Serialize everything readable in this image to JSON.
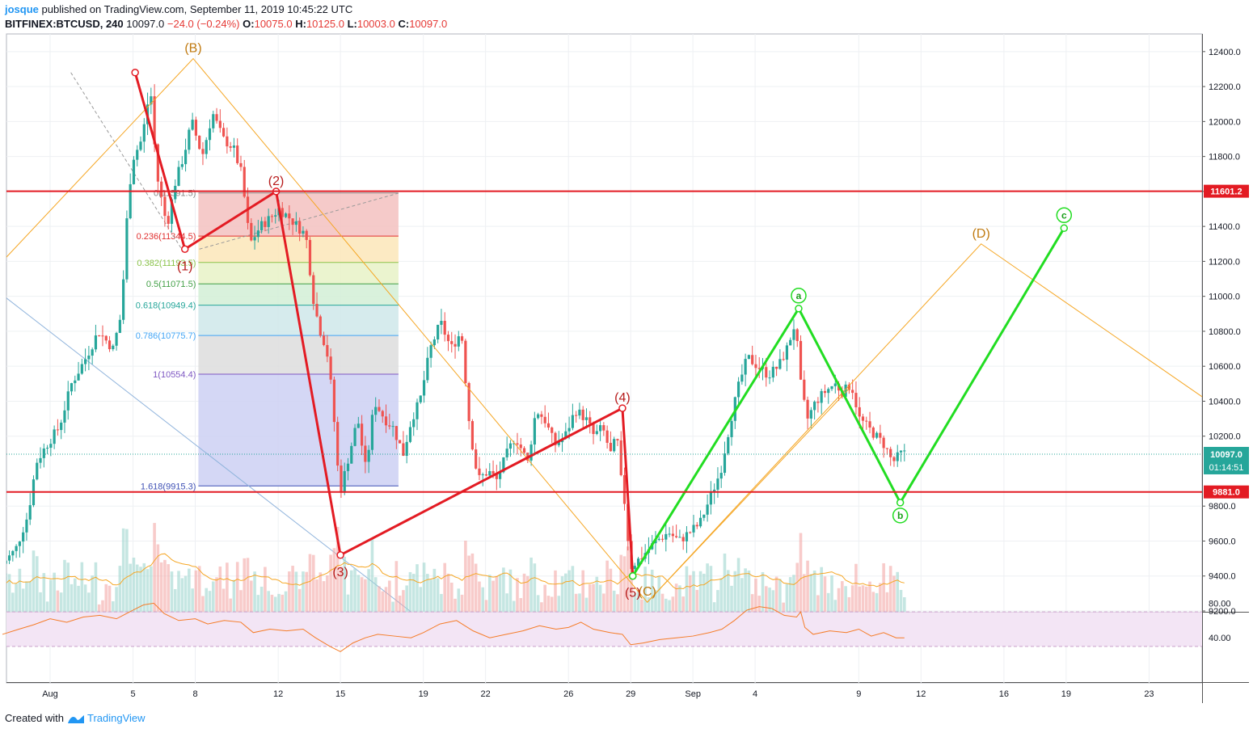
{
  "header": {
    "user": "josque",
    "published": "published on TradingView.com, September 11, 2019 10:45:22 UTC",
    "symbol": "BITFINEX:BTCUSD, 240",
    "last": "10097.0",
    "change": "−24.0 (−0.24%)",
    "ohlc": [
      {
        "k": "O:",
        "v": "10075.0"
      },
      {
        "k": "H:",
        "v": "10125.0"
      },
      {
        "k": "L:",
        "v": "10003.0"
      },
      {
        "k": "C:",
        "v": "10097.0"
      }
    ]
  },
  "footer": {
    "created": "Created with",
    "brand": "TradingView"
  },
  "colors": {
    "up": "#26a69a",
    "down": "#ef5350",
    "wave": "#e31b23",
    "abc": "#22dd22",
    "orange": "#f5a623",
    "rsi": "#f57c28"
  },
  "chart_data": {
    "type": "candlestick",
    "title": "",
    "ylim": [
      9200,
      12500
    ],
    "y_ticks": [
      "12400.0",
      "12200.0",
      "12000.0",
      "11800.0",
      "11600.0",
      "11400.0",
      "11200.0",
      "11000.0",
      "10800.0",
      "10600.0",
      "10400.0",
      "10200.0",
      "9800.0",
      "9600.0",
      "9400.0",
      "9200.0"
    ],
    "x_ticks": [
      {
        "label": "Aug",
        "day": 0
      },
      {
        "label": "5",
        "day": 4
      },
      {
        "label": "8",
        "day": 7
      },
      {
        "label": "12",
        "day": 11
      },
      {
        "label": "15",
        "day": 14
      },
      {
        "label": "19",
        "day": 18
      },
      {
        "label": "22",
        "day": 21
      },
      {
        "label": "26",
        "day": 25
      },
      {
        "label": "29",
        "day": 28
      },
      {
        "label": "Sep",
        "day": 31
      },
      {
        "label": "4",
        "day": 34
      },
      {
        "label": "9",
        "day": 39
      },
      {
        "label": "12",
        "day": 42
      },
      {
        "label": "16",
        "day": 46
      },
      {
        "label": "19",
        "day": 49
      },
      {
        "label": "23",
        "day": 53
      }
    ],
    "price_path": [
      [
        -2.3,
        9450
      ],
      [
        -1.5,
        9550
      ],
      [
        -0.9,
        9750
      ],
      [
        -0.5,
        10050
      ],
      [
        0,
        10150
      ],
      [
        0.6,
        10250
      ],
      [
        1.2,
        10500
      ],
      [
        1.9,
        10650
      ],
      [
        2.5,
        10800
      ],
      [
        3.2,
        10700
      ],
      [
        3.6,
        10900
      ],
      [
        3.95,
        11600
      ],
      [
        4.2,
        11800
      ],
      [
        4.6,
        11900
      ],
      [
        5.0,
        12200
      ],
      [
        5.3,
        11700
      ],
      [
        5.8,
        11400
      ],
      [
        6.2,
        11650
      ],
      [
        6.6,
        11800
      ],
      [
        7.0,
        12000
      ],
      [
        7.5,
        11800
      ],
      [
        8.0,
        12050
      ],
      [
        8.5,
        11900
      ],
      [
        9.0,
        11850
      ],
      [
        9.4,
        11700
      ],
      [
        9.8,
        11300
      ],
      [
        10.3,
        11400
      ],
      [
        10.8,
        11450
      ],
      [
        11.2,
        11500
      ],
      [
        11.7,
        11450
      ],
      [
        12.1,
        11400
      ],
      [
        12.5,
        11350
      ],
      [
        12.9,
        10950
      ],
      [
        13.2,
        10800
      ],
      [
        13.5,
        10700
      ],
      [
        13.8,
        10400
      ],
      [
        14.0,
        10050
      ],
      [
        14.2,
        9900
      ],
      [
        14.6,
        10100
      ],
      [
        15.0,
        10300
      ],
      [
        15.4,
        10000
      ],
      [
        15.8,
        10400
      ],
      [
        16.3,
        10300
      ],
      [
        16.7,
        10250
      ],
      [
        17.2,
        10100
      ],
      [
        17.6,
        10300
      ],
      [
        18.0,
        10400
      ],
      [
        18.5,
        10700
      ],
      [
        19.0,
        10850
      ],
      [
        19.5,
        10700
      ],
      [
        20.0,
        10800
      ],
      [
        20.4,
        10250
      ],
      [
        20.8,
        9950
      ],
      [
        21.3,
        10000
      ],
      [
        21.7,
        9950
      ],
      [
        22.2,
        10100
      ],
      [
        22.6,
        10200
      ],
      [
        23.2,
        10050
      ],
      [
        23.6,
        10350
      ],
      [
        24.0,
        10300
      ],
      [
        24.5,
        10150
      ],
      [
        25.0,
        10200
      ],
      [
        25.5,
        10350
      ],
      [
        26.0,
        10300
      ],
      [
        26.4,
        10200
      ],
      [
        26.8,
        10250
      ],
      [
        27.2,
        10100
      ],
      [
        27.5,
        10200
      ],
      [
        27.7,
        9950
      ],
      [
        27.9,
        9800
      ],
      [
        28.15,
        9450
      ],
      [
        28.6,
        9500
      ],
      [
        29.0,
        9550
      ],
      [
        29.4,
        9600
      ],
      [
        30.0,
        9650
      ],
      [
        30.5,
        9600
      ],
      [
        31.0,
        9650
      ],
      [
        31.5,
        9700
      ],
      [
        32.0,
        9850
      ],
      [
        32.5,
        10000
      ],
      [
        33.0,
        10300
      ],
      [
        33.4,
        10500
      ],
      [
        33.8,
        10650
      ],
      [
        34.3,
        10600
      ],
      [
        34.8,
        10550
      ],
      [
        35.3,
        10600
      ],
      [
        35.7,
        10700
      ],
      [
        36.1,
        10850
      ],
      [
        36.4,
        10450
      ],
      [
        36.7,
        10300
      ],
      [
        37.1,
        10400
      ],
      [
        37.5,
        10450
      ],
      [
        38.0,
        10500
      ],
      [
        38.4,
        10450
      ],
      [
        38.8,
        10500
      ],
      [
        39.2,
        10300
      ],
      [
        39.6,
        10250
      ],
      [
        40.0,
        10200
      ],
      [
        40.4,
        10150
      ],
      [
        40.8,
        10050
      ],
      [
        41.2,
        10100
      ]
    ],
    "horizontal_levels": [
      {
        "price": 11601.2,
        "label": "11601.2"
      },
      {
        "price": 9881.0,
        "label": "9881.0"
      }
    ],
    "last_price": {
      "price": 10097.0,
      "label": "10097.0",
      "countdown": "01:14:51"
    },
    "fibonacci": [
      {
        "label": "0(11591.5)",
        "price": 11591.5,
        "fill": "#f3c1bf"
      },
      {
        "label": "0.236(11344.5)",
        "price": 11344.5,
        "fill": "#fbe6b9"
      },
      {
        "label": "0.382(11193.5)",
        "price": 11193.5,
        "fill": "#e7f2c7"
      },
      {
        "label": "0.5(11071.5)",
        "price": 11071.5,
        "fill": "#d2efd6"
      },
      {
        "label": "0.618(10949.4)",
        "price": 10949.4,
        "fill": "#cfe8ea"
      },
      {
        "label": "0.786(10775.7)",
        "price": 10775.7,
        "fill": "#dddddd"
      },
      {
        "label": "1(10554.4)",
        "price": 10554.4,
        "fill": "#cdd0f3"
      },
      {
        "label": "1.618(9915.3)",
        "price": 9915.3
      }
    ],
    "elliott_wave": [
      {
        "label": "",
        "day": 4.1,
        "price": 12280
      },
      {
        "label": "(1)",
        "day": 6.5,
        "price": 11270
      },
      {
        "label": "(2)",
        "day": 10.9,
        "price": 11600
      },
      {
        "label": "(3)",
        "day": 14.0,
        "price": 9520
      },
      {
        "label": "(4)",
        "day": 27.6,
        "price": 10360
      },
      {
        "label": "(5)",
        "day": 28.1,
        "price": 9400
      }
    ],
    "abc_projection": [
      {
        "label": "",
        "day": 28.1,
        "price": 9400
      },
      {
        "label": "a",
        "day": 36.1,
        "price": 10930
      },
      {
        "label": "b",
        "day": 41.0,
        "price": 9820
      },
      {
        "label": "c",
        "day": 48.9,
        "price": 11390
      }
    ],
    "abcd_pattern": [
      {
        "label": "",
        "day": -2.3,
        "price": 11200
      },
      {
        "label": "(B)",
        "day": 6.9,
        "price": 12360
      },
      {
        "label": "(C)",
        "day": 28.8,
        "price": 9250
      },
      {
        "label": "(D)",
        "day": 44.9,
        "price": 11300
      },
      {
        "label": "",
        "day": 56.6,
        "price": 10340
      }
    ],
    "rsi": {
      "y_ticks": [
        "80.00",
        "40.00"
      ],
      "band": [
        30,
        70
      ],
      "values": [
        [
          -2.3,
          44
        ],
        [
          -1.5,
          50
        ],
        [
          -0.8,
          55
        ],
        [
          0,
          62
        ],
        [
          0.8,
          58
        ],
        [
          1.6,
          64
        ],
        [
          2.4,
          66
        ],
        [
          3.2,
          62
        ],
        [
          4.0,
          72
        ],
        [
          4.5,
          78
        ],
        [
          5.0,
          80
        ],
        [
          5.5,
          68
        ],
        [
          6.2,
          60
        ],
        [
          7.0,
          62
        ],
        [
          7.6,
          56
        ],
        [
          8.4,
          60
        ],
        [
          9.2,
          58
        ],
        [
          9.8,
          46
        ],
        [
          10.6,
          50
        ],
        [
          11.4,
          48
        ],
        [
          12.2,
          50
        ],
        [
          12.8,
          40
        ],
        [
          13.5,
          30
        ],
        [
          14.0,
          24
        ],
        [
          14.6,
          34
        ],
        [
          15.2,
          40
        ],
        [
          15.8,
          44
        ],
        [
          16.6,
          42
        ],
        [
          17.4,
          40
        ],
        [
          18.0,
          46
        ],
        [
          18.8,
          56
        ],
        [
          19.6,
          60
        ],
        [
          20.4,
          48
        ],
        [
          21.2,
          40
        ],
        [
          22.0,
          44
        ],
        [
          22.8,
          48
        ],
        [
          23.6,
          54
        ],
        [
          24.4,
          50
        ],
        [
          25.0,
          52
        ],
        [
          25.6,
          58
        ],
        [
          26.2,
          50
        ],
        [
          27.0,
          46
        ],
        [
          27.6,
          44
        ],
        [
          28.0,
          32
        ],
        [
          28.6,
          34
        ],
        [
          29.4,
          38
        ],
        [
          30.2,
          40
        ],
        [
          31.0,
          42
        ],
        [
          31.8,
          46
        ],
        [
          32.4,
          50
        ],
        [
          33.0,
          60
        ],
        [
          33.6,
          72
        ],
        [
          34.2,
          76
        ],
        [
          34.8,
          74
        ],
        [
          35.4,
          66
        ],
        [
          36.0,
          64
        ],
        [
          36.2,
          70
        ],
        [
          36.4,
          52
        ],
        [
          36.8,
          44
        ],
        [
          37.6,
          48
        ],
        [
          38.4,
          46
        ],
        [
          39.0,
          50
        ],
        [
          39.6,
          42
        ],
        [
          40.2,
          46
        ],
        [
          40.8,
          40
        ],
        [
          41.2,
          40
        ]
      ]
    }
  }
}
